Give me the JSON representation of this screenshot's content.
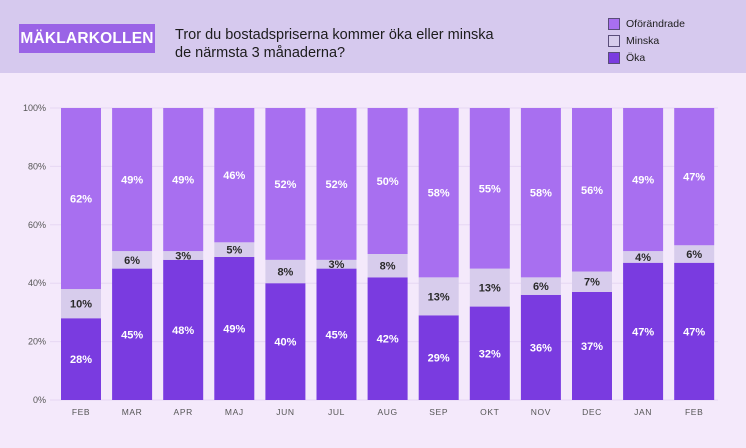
{
  "header": {
    "brand": "MÄKLARKOLLEN",
    "title_line1": "Tror du bostadspriserna kommer öka eller minska",
    "title_line2": "de närmsta 3 månaderna?"
  },
  "legend": [
    {
      "name": "Oförändrade",
      "color": "#a86ff0"
    },
    {
      "name": "Minska",
      "color": "#d7ccec"
    },
    {
      "name": "Öka",
      "color": "#7a3be0"
    }
  ],
  "chart_data": {
    "type": "bar",
    "stacked": true,
    "categories": [
      "FEB",
      "MAR",
      "APR",
      "MAJ",
      "JUN",
      "JUL",
      "AUG",
      "SEP",
      "OKT",
      "NOV",
      "DEC",
      "JAN",
      "FEB"
    ],
    "series": [
      {
        "name": "Öka",
        "color": "#7a3be0",
        "values": [
          28,
          45,
          48,
          49,
          40,
          45,
          42,
          29,
          32,
          36,
          37,
          47,
          47
        ]
      },
      {
        "name": "Minska",
        "color": "#d7ccec",
        "values": [
          10,
          6,
          3,
          5,
          8,
          3,
          8,
          13,
          13,
          6,
          7,
          4,
          6
        ]
      },
      {
        "name": "Oförändrade",
        "color": "#a86ff0",
        "values": [
          62,
          49,
          49,
          46,
          52,
          52,
          50,
          58,
          55,
          58,
          56,
          49,
          47
        ]
      }
    ],
    "yticks": [
      "0%",
      "20%",
      "40%",
      "60%",
      "80%",
      "100%"
    ],
    "ylim": [
      0,
      100
    ],
    "legend_position": "top-right"
  }
}
